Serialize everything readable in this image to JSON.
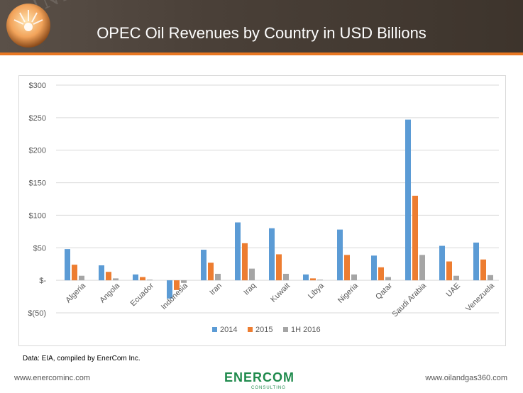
{
  "header": {
    "title": "OPEC Oil Revenues by Country in USD Billions",
    "watermark": "INDUSTRY"
  },
  "colors": {
    "series_2014": "#5b9bd5",
    "series_2015": "#ed7d31",
    "series_1h2016": "#a5a5a5",
    "header_bar": "#e87722",
    "brand_green": "#1f8a4c"
  },
  "chart_data": {
    "type": "bar",
    "categories": [
      "Algeria",
      "Angola",
      "Ecuador",
      "Indonesia",
      "Iran",
      "Iraq",
      "Kuwait",
      "Libya",
      "Nigeria",
      "Qatar",
      "Saudi Arabia",
      "UAE",
      "Venezuela"
    ],
    "series": [
      {
        "name": "2014",
        "values": [
          48,
          23,
          9,
          -28,
          47,
          89,
          80,
          9,
          78,
          38,
          247,
          53,
          58
        ]
      },
      {
        "name": "2015",
        "values": [
          24,
          13,
          5,
          -15,
          27,
          57,
          40,
          3,
          39,
          20,
          130,
          29,
          32
        ]
      },
      {
        "name": "1H 2016",
        "values": [
          7,
          3,
          1,
          -4,
          10,
          18,
          10,
          1,
          9,
          5,
          39,
          7,
          8
        ]
      }
    ],
    "y_ticks": [
      "$300",
      "$250",
      "$200",
      "$150",
      "$100",
      "$50",
      "$-",
      "$(50)"
    ],
    "ylim": [
      -50,
      300
    ],
    "grid": true,
    "legend": "bottom-center"
  },
  "source_note": "Data: EIA, compiled by EnerCom Inc.",
  "footer": {
    "left_url": "www.enercominc.com",
    "right_url": "www.oilandgas360.com",
    "logo_text": "ENERCOM",
    "logo_sub": "CONSULTING"
  }
}
